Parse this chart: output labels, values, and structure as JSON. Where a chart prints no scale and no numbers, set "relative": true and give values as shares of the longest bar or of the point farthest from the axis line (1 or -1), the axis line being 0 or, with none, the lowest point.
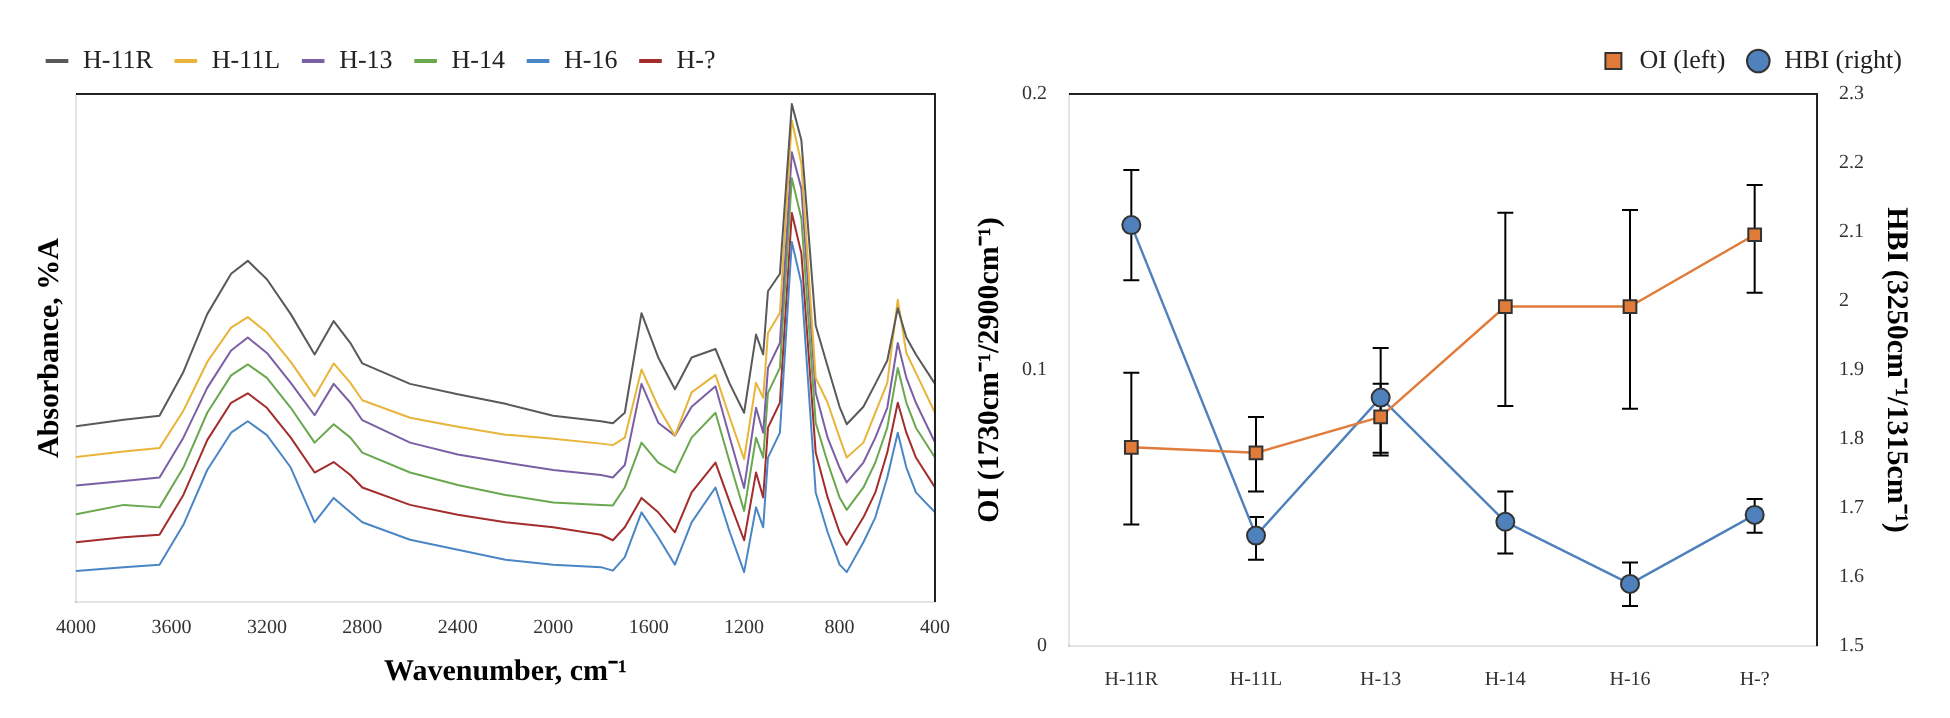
{
  "chart_data": [
    {
      "type": "line",
      "relative": true,
      "xlabel": "Wavenumber, cm⁻¹",
      "ylabel": "Absorbance, %A",
      "xlim": [
        4000,
        400
      ],
      "xticks": [
        4000,
        3600,
        3200,
        2800,
        2400,
        2000,
        1600,
        1200,
        800,
        400
      ],
      "grid": false,
      "legend": "top left",
      "marker": "none",
      "line_style": "solid",
      "x": [
        4000,
        3800,
        3650,
        3550,
        3450,
        3350,
        3280,
        3200,
        3100,
        3000,
        2920,
        2850,
        2800,
        2600,
        2400,
        2200,
        2000,
        1800,
        1750,
        1700,
        1630,
        1560,
        1490,
        1420,
        1320,
        1260,
        1200,
        1150,
        1120,
        1100,
        1050,
        1000,
        960,
        900,
        850,
        800,
        770,
        700,
        650,
        600,
        556,
        520,
        480,
        400
      ],
      "series": [
        {
          "name": "H-11R",
          "color": "#595959",
          "values": [
            0.353,
            0.366,
            0.374,
            0.462,
            0.578,
            0.659,
            0.685,
            0.648,
            0.578,
            0.497,
            0.564,
            0.52,
            0.479,
            0.438,
            0.417,
            0.398,
            0.374,
            0.363,
            0.359,
            0.38,
            0.58,
            0.491,
            0.427,
            0.491,
            0.508,
            0.438,
            0.38,
            0.537,
            0.497,
            0.624,
            0.659,
            1.0,
            0.927,
            0.555,
            0.473,
            0.392,
            0.357,
            0.392,
            0.438,
            0.485,
            0.59,
            0.531,
            0.497,
            0.438
          ]
        },
        {
          "name": "H-11L",
          "color": "#e8b53a",
          "values": [
            0.291,
            0.302,
            0.309,
            0.384,
            0.482,
            0.551,
            0.572,
            0.541,
            0.482,
            0.413,
            0.479,
            0.44,
            0.405,
            0.37,
            0.352,
            0.336,
            0.328,
            0.318,
            0.315,
            0.33,
            0.467,
            0.392,
            0.334,
            0.421,
            0.456,
            0.37,
            0.287,
            0.44,
            0.41,
            0.54,
            0.58,
            0.967,
            0.88,
            0.45,
            0.4,
            0.33,
            0.29,
            0.32,
            0.38,
            0.44,
            0.607,
            0.5,
            0.46,
            0.38
          ]
        },
        {
          "name": "H-13",
          "color": "#7b5fa5",
          "values": [
            0.234,
            0.243,
            0.25,
            0.33,
            0.43,
            0.505,
            0.531,
            0.5,
            0.44,
            0.375,
            0.438,
            0.4,
            0.365,
            0.32,
            0.296,
            0.28,
            0.265,
            0.255,
            0.25,
            0.275,
            0.438,
            0.36,
            0.334,
            0.392,
            0.433,
            0.33,
            0.229,
            0.39,
            0.34,
            0.47,
            0.52,
            0.903,
            0.83,
            0.42,
            0.33,
            0.27,
            0.24,
            0.28,
            0.33,
            0.39,
            0.52,
            0.45,
            0.4,
            0.32
          ]
        },
        {
          "name": "H-14",
          "color": "#6aa84f",
          "values": [
            0.176,
            0.195,
            0.19,
            0.27,
            0.38,
            0.455,
            0.477,
            0.45,
            0.39,
            0.32,
            0.357,
            0.33,
            0.3,
            0.26,
            0.235,
            0.215,
            0.2,
            0.195,
            0.194,
            0.23,
            0.32,
            0.28,
            0.26,
            0.33,
            0.38,
            0.28,
            0.183,
            0.33,
            0.29,
            0.42,
            0.47,
            0.851,
            0.77,
            0.36,
            0.28,
            0.21,
            0.185,
            0.23,
            0.28,
            0.35,
            0.47,
            0.4,
            0.35,
            0.29
          ]
        },
        {
          "name": "H-16",
          "color": "#4a86c6",
          "values": [
            0.062,
            0.07,
            0.075,
            0.155,
            0.265,
            0.34,
            0.363,
            0.335,
            0.27,
            0.16,
            0.209,
            0.18,
            0.16,
            0.125,
            0.105,
            0.085,
            0.075,
            0.07,
            0.063,
            0.09,
            0.18,
            0.13,
            0.075,
            0.16,
            0.23,
            0.14,
            0.06,
            0.19,
            0.15,
            0.29,
            0.34,
            0.723,
            0.64,
            0.22,
            0.14,
            0.075,
            0.06,
            0.12,
            0.17,
            0.25,
            0.34,
            0.27,
            0.22,
            0.18
          ]
        },
        {
          "name": "H-?",
          "color": "#a32c2c",
          "values": [
            0.12,
            0.13,
            0.135,
            0.215,
            0.325,
            0.4,
            0.419,
            0.39,
            0.33,
            0.26,
            0.281,
            0.255,
            0.23,
            0.195,
            0.175,
            0.16,
            0.15,
            0.135,
            0.124,
            0.15,
            0.209,
            0.18,
            0.14,
            0.22,
            0.28,
            0.2,
            0.124,
            0.26,
            0.21,
            0.35,
            0.4,
            0.781,
            0.7,
            0.3,
            0.21,
            0.14,
            0.115,
            0.17,
            0.22,
            0.3,
            0.4,
            0.34,
            0.29,
            0.23
          ]
        }
      ]
    },
    {
      "type": "line",
      "ylabel": "OI (1730cm⁻¹/2900cm⁻¹)",
      "y2label": "HBI (3250cm⁻¹/1315cm⁻¹)",
      "categories": [
        "H-11R",
        "H-11L",
        "H-13",
        "H-14",
        "H-16",
        "H-?"
      ],
      "ylim": [
        0,
        0.2
      ],
      "yticks": [
        0,
        0.1,
        0.2
      ],
      "y2lim": [
        1.5,
        2.3
      ],
      "y2ticks": [
        1.5,
        1.6,
        1.7,
        1.8,
        1.9,
        2,
        2.1,
        2.2,
        2.3
      ],
      "grid": false,
      "legend": "top right",
      "line_style": "solid",
      "series": [
        {
          "name": "OI (left)",
          "color": "#e07b39",
          "marker": "square",
          "values": [
            0.072,
            0.07,
            0.083,
            0.123,
            0.123,
            0.149
          ],
          "errors": [
            [
              0.044,
              0.099
            ],
            [
              0.056,
              0.083
            ],
            [
              0.069,
              0.108
            ],
            [
              0.087,
              0.157
            ],
            [
              0.086,
              0.158
            ],
            [
              0.128,
              0.167
            ]
          ]
        },
        {
          "name": "HBI (right)",
          "color": "#4f81bd",
          "marker": "circle",
          "axis": "y2",
          "values": [
            2.11,
            1.66,
            1.86,
            1.68,
            1.59,
            1.69
          ],
          "errors": [
            [
              2.03,
              2.19
            ],
            [
              1.625,
              1.687
            ],
            [
              1.78,
              1.88
            ],
            [
              1.634,
              1.724
            ],
            [
              1.558,
              1.621
            ],
            [
              1.664,
              1.713
            ]
          ]
        }
      ]
    }
  ]
}
